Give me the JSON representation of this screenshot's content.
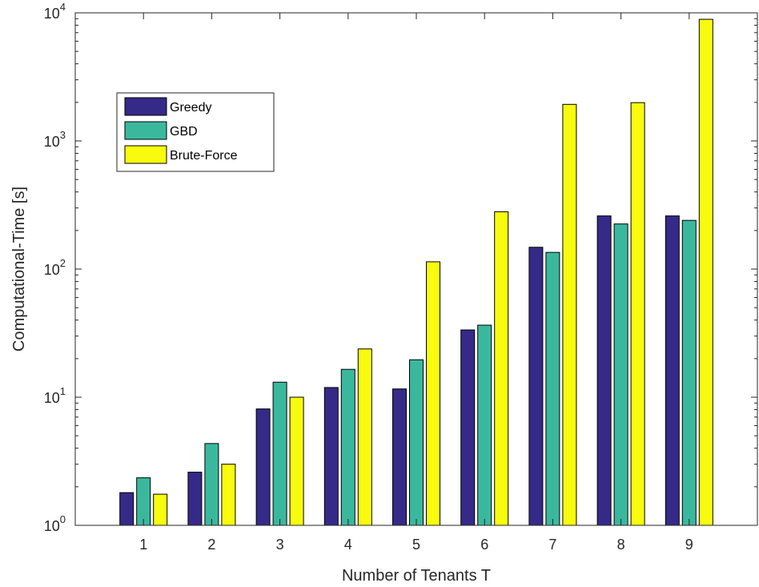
{
  "chart_data": {
    "type": "bar",
    "title": "",
    "xlabel": "Number of Tenants T",
    "ylabel": "Computational-Time [s]",
    "yscale": "log",
    "ylim": [
      1,
      10000
    ],
    "categories": [
      "1",
      "2",
      "3",
      "4",
      "5",
      "6",
      "7",
      "8",
      "9"
    ],
    "ytick_labels": [
      {
        "value": 1,
        "base": "10",
        "exp": "0"
      },
      {
        "value": 10,
        "base": "10",
        "exp": "1"
      },
      {
        "value": 100,
        "base": "10",
        "exp": "2"
      },
      {
        "value": 1000,
        "base": "10",
        "exp": "3"
      },
      {
        "value": 10000,
        "base": "10",
        "exp": "4"
      }
    ],
    "series": [
      {
        "name": "Greedy",
        "color": "#352a87",
        "values": [
          1.8,
          2.6,
          8.1,
          11.9,
          11.6,
          33.5,
          148,
          260,
          260
        ]
      },
      {
        "name": "GBD",
        "color": "#3ab89d",
        "values": [
          2.35,
          4.35,
          13.1,
          16.5,
          19.6,
          36.5,
          135,
          225,
          240
        ]
      },
      {
        "name": "Brute-Force",
        "color": "#f9fb0e",
        "values": [
          1.75,
          3.0,
          10.0,
          23.8,
          114,
          280,
          1930,
          1990,
          8900
        ]
      }
    ],
    "legend": {
      "position": "top-left"
    },
    "grid": false
  }
}
